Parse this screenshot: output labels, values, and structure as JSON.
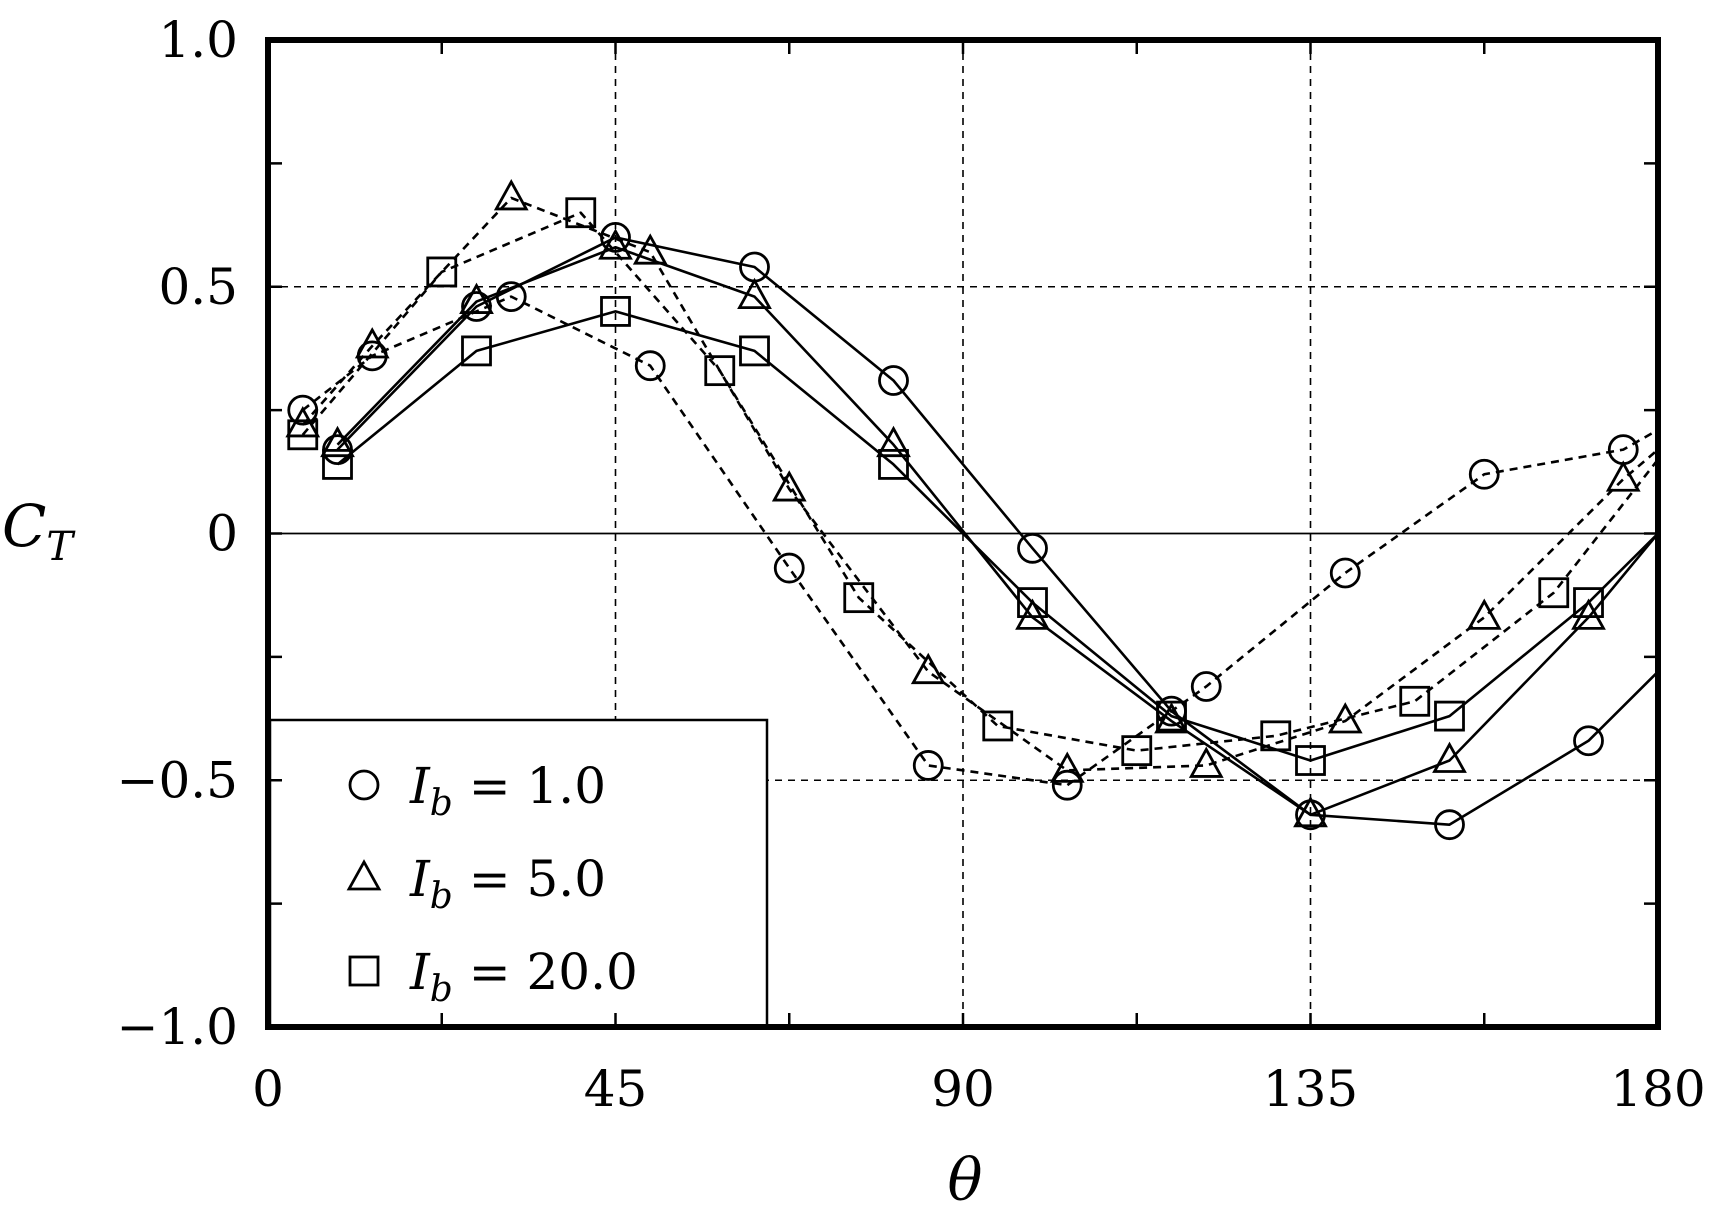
{
  "chart_data": {
    "type": "line",
    "xlabel": "θ",
    "ylabel": {
      "main": "C",
      "sub": "T"
    },
    "xlim": [
      0,
      180
    ],
    "ylim": [
      -1.0,
      1.0
    ],
    "x_ticks": [
      0,
      45,
      90,
      135,
      180
    ],
    "x_tick_labels": [
      "0",
      "45",
      "90",
      "135",
      "180"
    ],
    "y_ticks": [
      -1.0,
      -0.5,
      0,
      0.5,
      1.0
    ],
    "y_tick_labels": [
      "−1.0",
      "−0.5",
      "0",
      "0.5",
      "1.0"
    ],
    "grid": "dashed at 45, 90, 135 and ±0.5; solid zero line",
    "legend": {
      "position": "bottom-left",
      "entries": [
        {
          "marker": "circle",
          "var": "I",
          "sub": "b",
          "text": " = 1.0"
        },
        {
          "marker": "triangle",
          "var": "I",
          "sub": "b",
          "text": " = 5.0"
        },
        {
          "marker": "square",
          "var": "I",
          "sub": "b",
          "text": " = 20.0"
        }
      ]
    },
    "series": [
      {
        "marker": "circle",
        "line": "solid",
        "x": [
          9,
          27,
          45,
          63,
          81,
          99,
          117,
          135,
          153,
          171,
          180
        ],
        "y": [
          0.17,
          0.46,
          0.6,
          0.54,
          0.31,
          -0.03,
          -0.36,
          -0.57,
          -0.59,
          -0.42,
          -0.28
        ]
      },
      {
        "marker": "triangle",
        "line": "solid",
        "x": [
          9,
          27,
          45,
          63,
          81,
          99,
          117,
          135,
          153,
          171,
          180
        ],
        "y": [
          0.18,
          0.47,
          0.58,
          0.48,
          0.18,
          -0.17,
          -0.38,
          -0.57,
          -0.46,
          -0.17,
          0.0
        ]
      },
      {
        "marker": "square",
        "line": "solid",
        "x": [
          9,
          27,
          45,
          63,
          81,
          99,
          117,
          135,
          153,
          171,
          180
        ],
        "y": [
          0.14,
          0.37,
          0.45,
          0.37,
          0.14,
          -0.14,
          -0.37,
          -0.46,
          -0.37,
          -0.14,
          0.0
        ]
      },
      {
        "marker": "circle",
        "line": "dashed",
        "x": [
          4.5,
          13.5,
          31.5,
          49.5,
          67.5,
          85.5,
          103.5,
          121.5,
          139.5,
          157.5,
          175.5,
          180
        ],
        "y": [
          0.25,
          0.36,
          0.48,
          0.34,
          -0.07,
          -0.47,
          -0.51,
          -0.31,
          -0.08,
          0.12,
          0.17,
          0.21
        ]
      },
      {
        "marker": "triangle",
        "line": "dashed",
        "x": [
          4.5,
          13.5,
          31.5,
          49.5,
          67.5,
          85.5,
          103.5,
          121.5,
          139.5,
          157.5,
          175.5,
          180
        ],
        "y": [
          0.22,
          0.38,
          0.68,
          0.57,
          0.09,
          -0.28,
          -0.48,
          -0.47,
          -0.38,
          -0.17,
          0.11,
          0.17
        ]
      },
      {
        "marker": "square",
        "line": "dashed",
        "x": [
          4.5,
          22.5,
          40.5,
          58.5,
          76.5,
          94.5,
          112.5,
          130.5,
          148.5,
          166.5,
          180
        ],
        "y": [
          0.2,
          0.53,
          0.65,
          0.33,
          -0.13,
          -0.39,
          -0.44,
          -0.41,
          -0.34,
          -0.12,
          0.15
        ]
      }
    ]
  }
}
